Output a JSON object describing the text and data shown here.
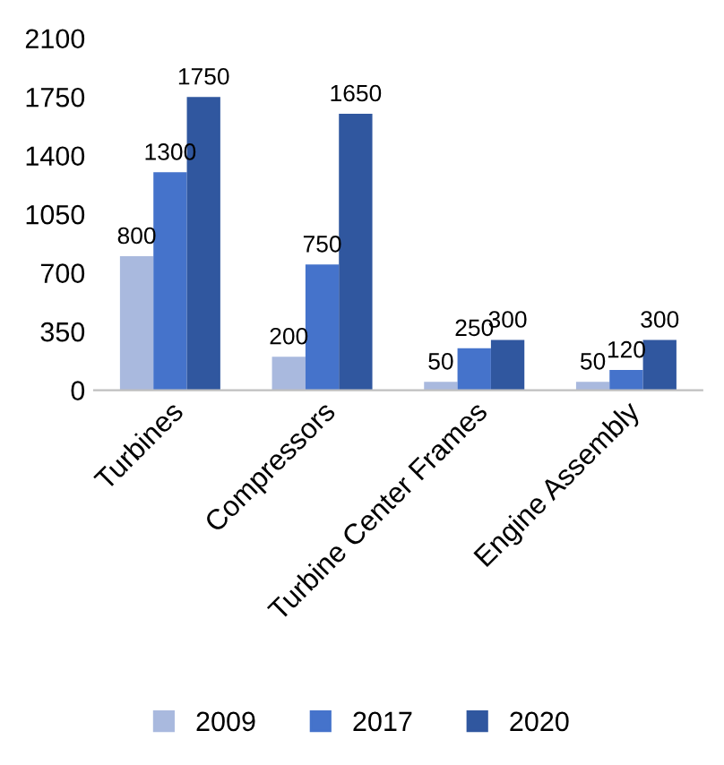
{
  "chart_data": {
    "type": "bar",
    "categories": [
      "Turbines",
      "Compressors",
      "Turbine Center Frames",
      "Engine Assembly"
    ],
    "series": [
      {
        "name": "2009",
        "color": "#a9b9de",
        "values": [
          800,
          200,
          50,
          50
        ]
      },
      {
        "name": "2017",
        "color": "#4573cb",
        "values": [
          1300,
          750,
          250,
          120
        ]
      },
      {
        "name": "2020",
        "color": "#30579f",
        "values": [
          1750,
          1650,
          300,
          300
        ]
      }
    ],
    "ylim": [
      0,
      2100
    ],
    "yticks": [
      0,
      350,
      700,
      1050,
      1400,
      1750,
      2100
    ],
    "data_labels": true,
    "grid": false,
    "legend": "bottom"
  }
}
